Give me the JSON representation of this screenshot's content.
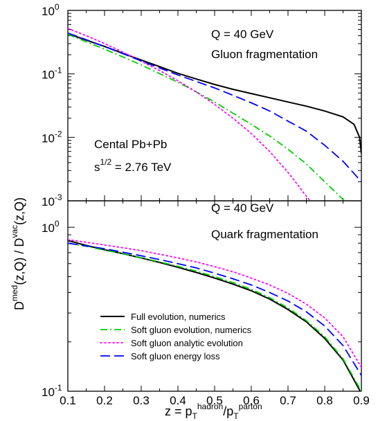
{
  "chart_data": [
    {
      "type": "line",
      "panel": "top",
      "x_range": [
        0.1,
        0.9
      ],
      "y_range": [
        0.001,
        1
      ],
      "y_scale": "log",
      "x_ticks": [
        0.1,
        0.2,
        0.3,
        0.4,
        0.5,
        0.6,
        0.7,
        0.8,
        0.9
      ],
      "y_ticks": [
        {
          "value": 1,
          "base": "10",
          "exp": "0"
        },
        {
          "value": 0.1,
          "base": "10",
          "exp": "-1"
        },
        {
          "value": 0.01,
          "base": "10",
          "exp": "-2"
        },
        {
          "value": 0.001,
          "base": "10",
          "exp": "-3"
        }
      ],
      "annotations": {
        "energy": "Q = 40 GeV",
        "process": "Gluon fragmentation",
        "system": "Cental Pb+Pb",
        "sqrts_base": "s",
        "sqrts_exp": "1/2",
        "sqrts_value": " = 2.76 TeV"
      },
      "series": [
        {
          "name": "Full evolution, numerics",
          "color": "#000000",
          "style": "solid",
          "x": [
            0.1,
            0.15,
            0.2,
            0.25,
            0.3,
            0.35,
            0.4,
            0.45,
            0.5,
            0.55,
            0.6,
            0.65,
            0.7,
            0.75,
            0.8,
            0.85,
            0.88,
            0.895,
            0.9
          ],
          "y": [
            0.43,
            0.34,
            0.27,
            0.21,
            0.165,
            0.13,
            0.102,
            0.083,
            0.068,
            0.057,
            0.049,
            0.042,
            0.036,
            0.031,
            0.026,
            0.021,
            0.016,
            0.01,
            0.0055
          ]
        },
        {
          "name": "Soft gluon evolution, numerics",
          "color": "#00cc00",
          "style": "dashdot",
          "x": [
            0.1,
            0.15,
            0.2,
            0.25,
            0.3,
            0.35,
            0.4,
            0.45,
            0.5,
            0.55,
            0.6,
            0.65,
            0.7,
            0.75,
            0.8,
            0.85,
            0.855
          ],
          "y": [
            0.42,
            0.32,
            0.245,
            0.185,
            0.138,
            0.101,
            0.074,
            0.052,
            0.036,
            0.024,
            0.016,
            0.0105,
            0.0065,
            0.0038,
            0.002,
            0.00105,
            0.00095
          ]
        },
        {
          "name": "Soft gluon analytic evolution",
          "color": "#ff00ff",
          "style": "dotted",
          "x": [
            0.1,
            0.15,
            0.2,
            0.25,
            0.3,
            0.35,
            0.4,
            0.45,
            0.5,
            0.55,
            0.6,
            0.65,
            0.7,
            0.72,
            0.74,
            0.76,
            0.77
          ],
          "y": [
            0.52,
            0.4,
            0.3,
            0.22,
            0.158,
            0.113,
            0.078,
            0.052,
            0.033,
            0.02,
            0.0115,
            0.006,
            0.0028,
            0.002,
            0.0014,
            0.001,
            0.00085
          ]
        },
        {
          "name": "Soft gluon energy loss",
          "color": "#0000ff",
          "style": "dashed",
          "x": [
            0.1,
            0.15,
            0.2,
            0.25,
            0.3,
            0.35,
            0.4,
            0.45,
            0.5,
            0.55,
            0.6,
            0.65,
            0.7,
            0.75,
            0.8,
            0.85,
            0.9
          ],
          "y": [
            0.44,
            0.345,
            0.27,
            0.208,
            0.16,
            0.124,
            0.096,
            0.076,
            0.06,
            0.046,
            0.035,
            0.026,
            0.018,
            0.0125,
            0.0075,
            0.0042,
            0.002
          ]
        }
      ]
    },
    {
      "type": "line",
      "panel": "bottom",
      "x_range": [
        0.1,
        0.9
      ],
      "y_range": [
        0.1,
        1.45
      ],
      "y_scale": "log",
      "x_ticks": [
        0.1,
        0.2,
        0.3,
        0.4,
        0.5,
        0.6,
        0.7,
        0.8,
        0.9
      ],
      "y_ticks": [
        {
          "value": 1,
          "base": "10",
          "exp": "0"
        },
        {
          "value": 0.1,
          "base": "10",
          "exp": "-1"
        }
      ],
      "annotations": {
        "energy": "Q = 40 GeV",
        "process": "Quark fragmentation"
      },
      "series": [
        {
          "name": "Full evolution, numerics",
          "color": "#000000",
          "style": "solid",
          "x": [
            0.1,
            0.15,
            0.2,
            0.25,
            0.3,
            0.35,
            0.4,
            0.45,
            0.5,
            0.55,
            0.6,
            0.65,
            0.7,
            0.75,
            0.8,
            0.85,
            0.9
          ],
          "y": [
            0.83,
            0.775,
            0.73,
            0.69,
            0.65,
            0.61,
            0.57,
            0.53,
            0.49,
            0.45,
            0.41,
            0.365,
            0.315,
            0.265,
            0.21,
            0.155,
            0.097
          ]
        },
        {
          "name": "Soft gluon evolution, numerics",
          "color": "#00cc00",
          "style": "dashdot",
          "x": [
            0.1,
            0.15,
            0.2,
            0.25,
            0.3,
            0.35,
            0.4,
            0.45,
            0.5,
            0.55,
            0.6,
            0.65,
            0.7,
            0.75,
            0.8,
            0.85,
            0.9
          ],
          "y": [
            0.8,
            0.765,
            0.725,
            0.69,
            0.652,
            0.615,
            0.578,
            0.54,
            0.5,
            0.46,
            0.418,
            0.372,
            0.322,
            0.27,
            0.215,
            0.158,
            0.1
          ]
        },
        {
          "name": "Soft gluon analytic evolution",
          "color": "#ff00ff",
          "style": "dotted",
          "x": [
            0.1,
            0.15,
            0.2,
            0.25,
            0.3,
            0.35,
            0.4,
            0.45,
            0.5,
            0.55,
            0.6,
            0.65,
            0.7,
            0.75,
            0.8,
            0.85,
            0.9
          ],
          "y": [
            0.84,
            0.81,
            0.78,
            0.75,
            0.72,
            0.685,
            0.65,
            0.615,
            0.575,
            0.535,
            0.49,
            0.445,
            0.395,
            0.34,
            0.28,
            0.215,
            0.14
          ]
        },
        {
          "name": "Soft gluon energy loss",
          "color": "#0000ff",
          "style": "dashed",
          "x": [
            0.1,
            0.15,
            0.2,
            0.25,
            0.3,
            0.35,
            0.4,
            0.45,
            0.5,
            0.55,
            0.6,
            0.65,
            0.7,
            0.75,
            0.8,
            0.85,
            0.9
          ],
          "y": [
            0.8,
            0.77,
            0.74,
            0.705,
            0.67,
            0.635,
            0.6,
            0.565,
            0.525,
            0.485,
            0.445,
            0.4,
            0.355,
            0.305,
            0.25,
            0.19,
            0.125
          ]
        }
      ]
    }
  ],
  "legend": {
    "placement": "lower-left of bottom panel",
    "entries": [
      {
        "label": "Full evolution, numerics",
        "color": "#000000",
        "style": "solid"
      },
      {
        "label": "Soft gluon evolution, numerics",
        "color": "#00cc00",
        "style": "dashdot"
      },
      {
        "label": "Soft gluon analytic evolution",
        "color": "#ff00ff",
        "style": "dotted"
      },
      {
        "label": "Soft gluon energy loss",
        "color": "#0000ff",
        "style": "dashed"
      }
    ]
  },
  "axes": {
    "xlabel": {
      "pre": "z = p",
      "sub1": "T",
      "sup1": "hadron",
      "mid": "/p",
      "sub2": "T",
      "sup2": "parton"
    },
    "ylabel": {
      "a": "D",
      "a_sup": "med",
      "b": "(z,Q) / D",
      "b_sup": "vac",
      "c": "(z,Q)"
    }
  }
}
